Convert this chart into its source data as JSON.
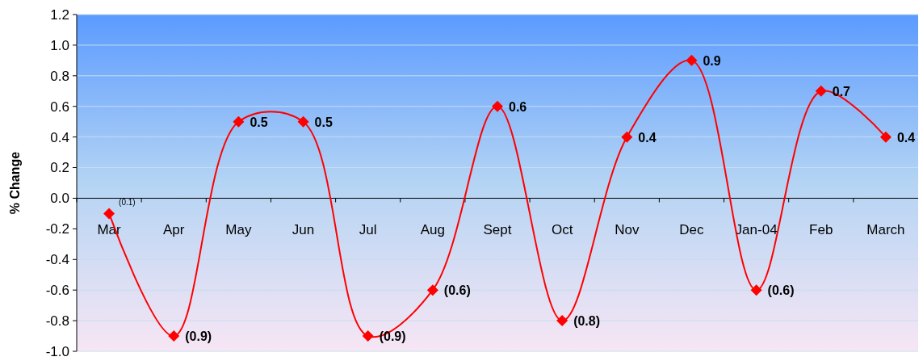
{
  "chart_data": {
    "type": "line",
    "ylabel": "% Change",
    "categories": [
      "Mar",
      "Apr",
      "May",
      "Jun",
      "Jul",
      "Aug",
      "Sept",
      "Oct",
      "Nov",
      "Dec",
      "Jan-04",
      "Feb",
      "March"
    ],
    "series": [
      {
        "color": "#ff0000",
        "values": [
          -0.1,
          -0.9,
          0.5,
          0.5,
          -0.9,
          -0.6,
          0.6,
          -0.8,
          0.4,
          0.9,
          -0.6,
          0.7,
          0.4
        ],
        "value_labels": [
          "(0.1)",
          "(0.9)",
          "0.5",
          "0.5",
          "(0.9)",
          "(0.6)",
          "0.6",
          "(0.8)",
          "0.4",
          "0.9",
          "(0.6)",
          "0.7",
          "0.4"
        ]
      }
    ],
    "ylim": [
      -1,
      1.2
    ],
    "yticks": [
      {
        "value": -1,
        "label": "-1.0"
      },
      -0.8,
      -0.6,
      -0.4,
      -0.2,
      {
        "value": 0,
        "label": "0.0"
      },
      0.2,
      0.4,
      0.6,
      0.8,
      {
        "value": 1,
        "label": "1.0"
      },
      1.2
    ],
    "grid": "y",
    "marker": "diamond",
    "line_style": "solid"
  }
}
